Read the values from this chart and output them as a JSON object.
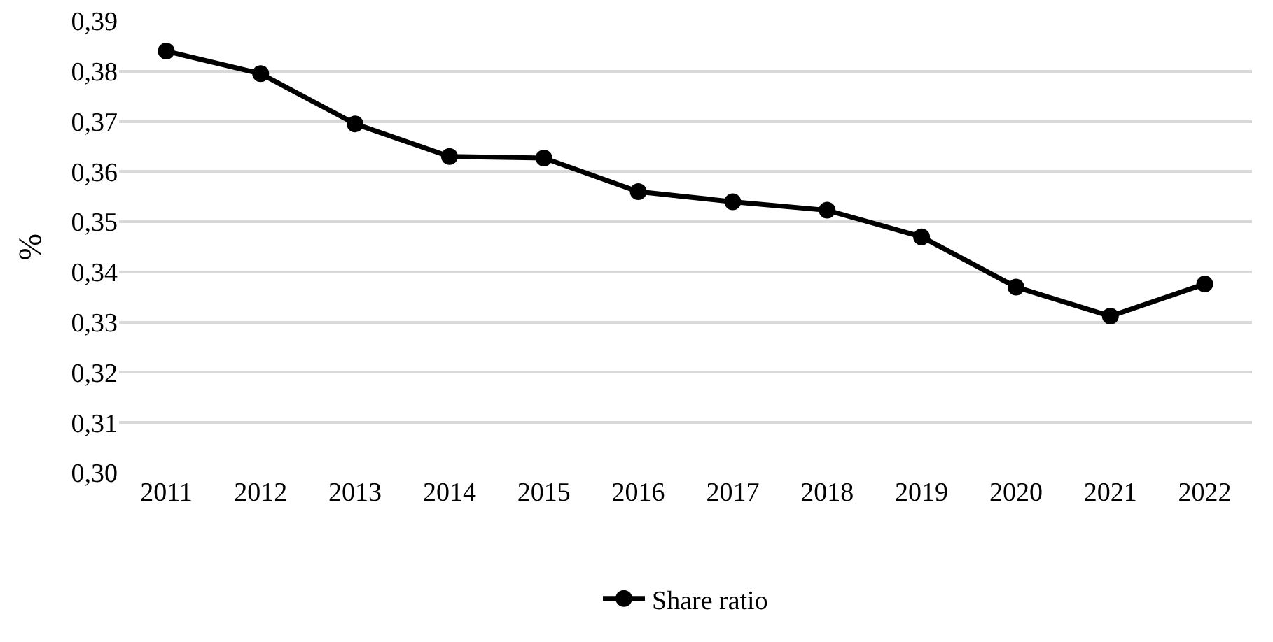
{
  "chart_data": {
    "type": "line",
    "ylabel": "%",
    "categories": [
      "2011",
      "2012",
      "2013",
      "2014",
      "2015",
      "2016",
      "2017",
      "2018",
      "2019",
      "2020",
      "2021",
      "2022"
    ],
    "series": [
      {
        "name": "Share ratio",
        "color": "#000000",
        "values": [
          0.384,
          0.3795,
          0.3695,
          0.363,
          0.3627,
          0.356,
          0.354,
          0.3523,
          0.347,
          0.337,
          0.3312,
          0.3376
        ]
      }
    ],
    "ylim": [
      0.3,
      0.39
    ],
    "yticks": [
      {
        "value": 0.3,
        "label": "0,30"
      },
      {
        "value": 0.31,
        "label": "0,31"
      },
      {
        "value": 0.32,
        "label": "0,32"
      },
      {
        "value": 0.33,
        "label": "0,33"
      },
      {
        "value": 0.34,
        "label": "0,34"
      },
      {
        "value": 0.35,
        "label": "0,35"
      },
      {
        "value": 0.36,
        "label": "0,36"
      },
      {
        "value": 0.37,
        "label": "0,37"
      },
      {
        "value": 0.38,
        "label": "0,38"
      },
      {
        "value": 0.39,
        "label": "0,39"
      }
    ],
    "grid": "y",
    "legend": "bottom",
    "marker": "circle",
    "line_style": "solid"
  }
}
